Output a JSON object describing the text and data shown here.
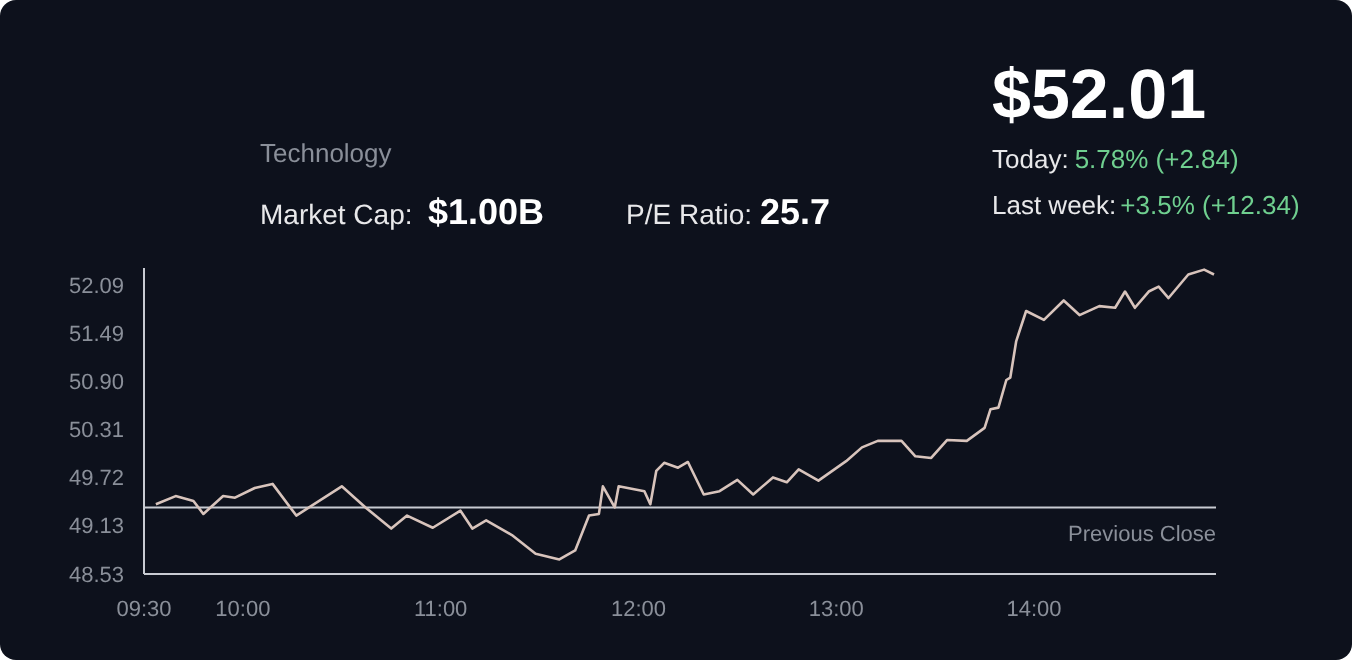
{
  "chart_data": {
    "type": "line",
    "subtitle": "Technology",
    "annotations": [
      "Market Cap:",
      "$1.00B",
      "P/E Ratio:",
      "25.7",
      "$52.01",
      "Today:",
      "5.78% (+2.84)",
      "Last week:",
      "+3.5% (+12.34)"
    ],
    "x": [
      9.56,
      9.66,
      9.75,
      9.8,
      9.9,
      9.96,
      10.06,
      10.15,
      10.27,
      10.5,
      10.62,
      10.75,
      10.83,
      10.96,
      11.1,
      11.16,
      11.23,
      11.36,
      11.48,
      11.6,
      11.68,
      11.75,
      11.8,
      11.82,
      11.88,
      11.9,
      12.03,
      12.06,
      12.09,
      12.13,
      12.2,
      12.25,
      12.33,
      12.41,
      12.5,
      12.58,
      12.68,
      12.75,
      12.81,
      12.91,
      13.05,
      13.13,
      13.21,
      13.33,
      13.4,
      13.48,
      13.56,
      13.66,
      13.75,
      13.78,
      13.82,
      13.86,
      13.88,
      13.91,
      13.96,
      14.05,
      14.15,
      14.23,
      14.33,
      14.41,
      14.46,
      14.51,
      14.58,
      14.63,
      14.68,
      14.78,
      14.86,
      14.91
    ],
    "series": [
      {
        "color": "#d8c4bc",
        "values": [
          49.39,
          49.49,
          49.43,
          49.27,
          49.49,
          49.47,
          49.59,
          49.64,
          49.25,
          49.61,
          49.35,
          49.09,
          49.25,
          49.1,
          49.31,
          49.09,
          49.19,
          49.01,
          48.78,
          48.71,
          48.82,
          49.25,
          49.27,
          49.61,
          49.35,
          49.61,
          49.55,
          49.39,
          49.8,
          49.9,
          49.84,
          49.91,
          49.51,
          49.55,
          49.69,
          49.51,
          49.72,
          49.66,
          49.82,
          49.68,
          49.92,
          50.09,
          50.17,
          50.17,
          49.98,
          49.96,
          50.18,
          50.17,
          50.33,
          50.56,
          50.58,
          50.92,
          50.95,
          51.4,
          51.77,
          51.66,
          51.9,
          51.72,
          51.83,
          51.81,
          52.01,
          51.81,
          52.01,
          52.07,
          51.93,
          52.22,
          52.28,
          52.22
        ]
      }
    ],
    "xlim": [
      9.5,
      14.92
    ],
    "ylim": [
      48.53,
      52.3
    ],
    "xticks": [
      {
        "value": 9.5,
        "label": "09:30"
      },
      {
        "value": 10,
        "label": "10:00"
      },
      {
        "value": 11,
        "label": "11:00"
      },
      {
        "value": 12,
        "label": "12:00"
      },
      {
        "value": 13,
        "label": "13:00"
      },
      {
        "value": 14,
        "label": "14:00"
      }
    ],
    "yticks": [
      {
        "value": 52.09,
        "label": "52.09"
      },
      {
        "value": 51.49,
        "label": "51.49"
      },
      {
        "value": 50.9,
        "label": "50.90"
      },
      {
        "value": 50.31,
        "label": "50.31"
      },
      {
        "value": 49.72,
        "label": "49.72"
      },
      {
        "value": 49.13,
        "label": "49.13"
      },
      {
        "value": 48.53,
        "label": "48.53"
      }
    ],
    "ref_lines": [
      {
        "axis": "y",
        "value": 49.35,
        "label": "Previous Close",
        "color": "#c8cbd2"
      }
    ],
    "grid": false,
    "marker": "none",
    "line_style": "solid"
  }
}
